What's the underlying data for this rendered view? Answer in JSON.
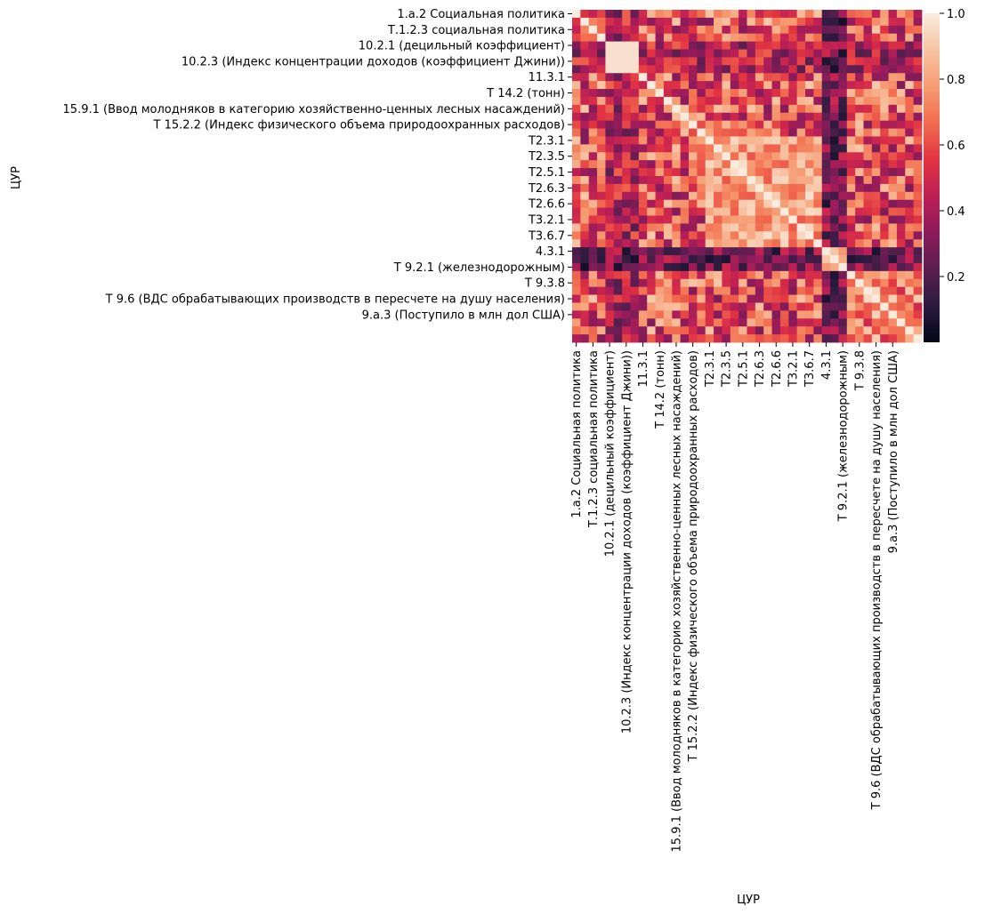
{
  "chart_data": {
    "type": "heatmap",
    "xlabel": "ЦУР",
    "ylabel": "ЦУР",
    "tick_labels": [
      "1.a.2 Социальная политика",
      "Т.1.2.3 социальная политика",
      "10.2.1 (децильный коэффициент)",
      "10.2.3 (Индекс концентрации доходов (коэффициент Джини))",
      "11.3.1",
      "Т 14.2 (тонн)",
      "15.9.1 (Ввод молодняков в категорию хозяйственно-ценных лесных насаждений)",
      "Т 15.2.2 (Индекс физического объема природоохранных расходов)",
      "Т2.3.1",
      "Т2.3.5",
      "Т2.5.1",
      "Т2.6.3",
      "Т2.6.6",
      "Т3.2.1",
      "Т3.6.7",
      "4.3.1",
      "Т 9.2.1 (железнодорожным)",
      "Т 9.3.8",
      "Т 9.6 (ВДС обрабатывающих производств в пересчете на душу населения)",
      "9.a.3 (Поступило в млн дол США)"
    ],
    "matrix_size": 42,
    "tick_every": 2,
    "colorbar": {
      "min": 0.0,
      "max": 1.0,
      "ticks": [
        "0.2",
        "0.4",
        "0.6",
        "0.8",
        "1.0"
      ],
      "tick_values": [
        0.2,
        0.4,
        0.6,
        0.8,
        1.0
      ]
    },
    "colormap": [
      "#03051a",
      "#2b1b3e",
      "#5a1e4f",
      "#8c1b5b",
      "#bd1f55",
      "#e13342",
      "#f26c4f",
      "#f69c73",
      "#f7c4a4",
      "#faebdd"
    ]
  }
}
